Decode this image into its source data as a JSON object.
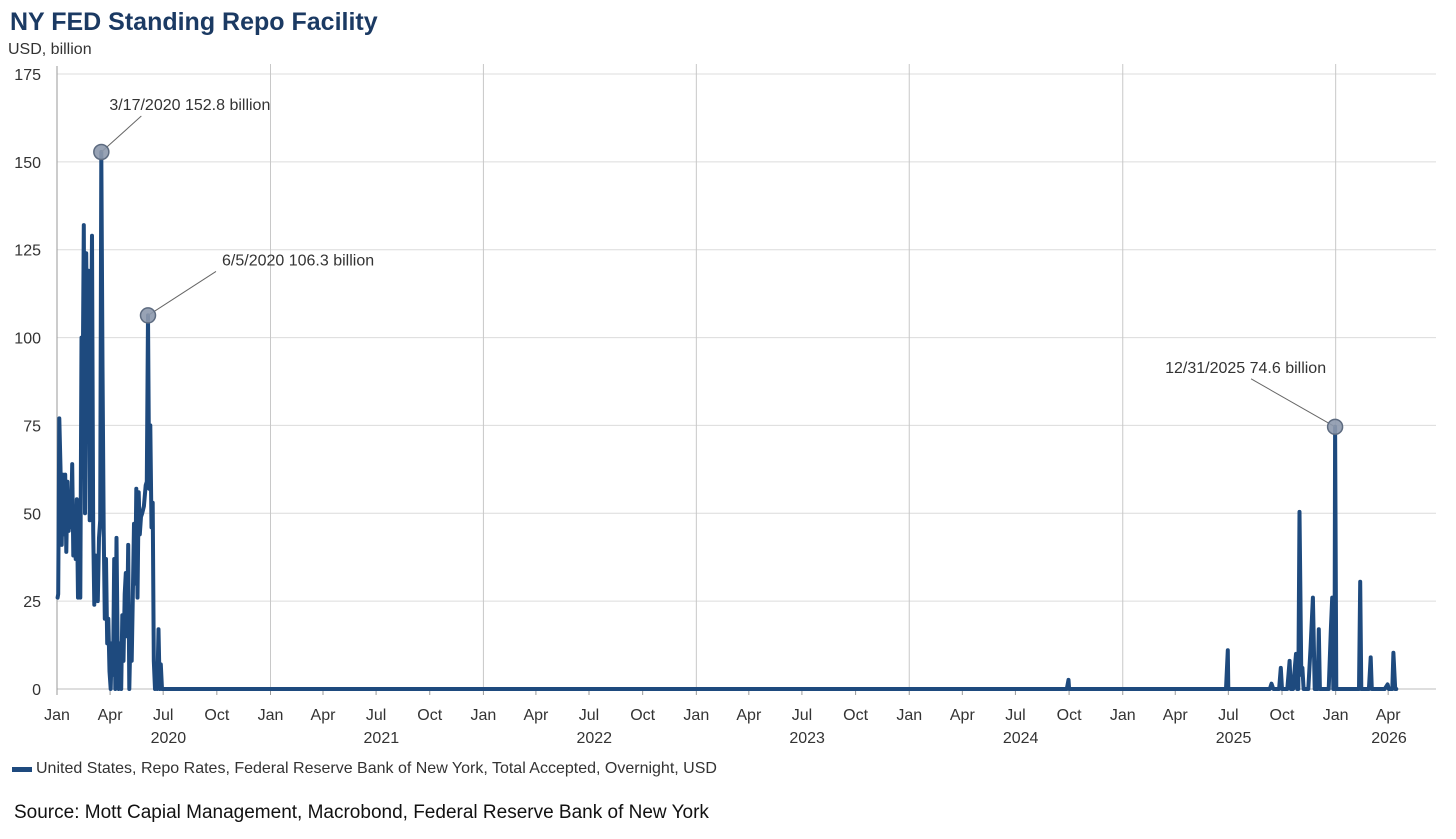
{
  "title": "NY FED Standing Repo Facility",
  "unit": "USD, billion",
  "legend": {
    "label": "United States, Repo Rates, Federal Reserve Bank of New York, Total Accepted, Overnight, USD",
    "color": "#1e4a7e"
  },
  "source": "Source: Mott Capial Management, Macrobond, Federal Reserve Bank of New York",
  "chart_data": {
    "type": "line",
    "title": "NY FED Standing Repo Facility",
    "ylabel": "USD, billion",
    "ylim": [
      0,
      175
    ],
    "yticks": [
      0,
      25,
      50,
      75,
      100,
      125,
      150,
      175
    ],
    "xlim": [
      "2020-01-01",
      "2026-04-30"
    ],
    "grid": true,
    "legend_position": "bottom-left",
    "month_ticks": [
      "Jan",
      "Apr",
      "Jul",
      "Oct",
      "Jan",
      "Apr",
      "Jul",
      "Oct",
      "Jan",
      "Apr",
      "Jul",
      "Oct",
      "Jan",
      "Apr",
      "Jul",
      "Oct",
      "Jan",
      "Apr",
      "Jul",
      "Oct",
      "Jan",
      "Apr",
      "Jul",
      "Oct",
      "Jan",
      "Apr"
    ],
    "year_ticks": [
      "2020",
      "2021",
      "2022",
      "2023",
      "2024",
      "2025",
      "2026"
    ],
    "series": [
      {
        "name": "United States, Repo Rates, Federal Reserve Bank of New York, Total Accepted, Overnight, USD",
        "color": "#1e4a7e",
        "points": [
          [
            "2020-01-02",
            26
          ],
          [
            "2020-01-03",
            27
          ],
          [
            "2020-01-05",
            77
          ],
          [
            "2020-01-07",
            63
          ],
          [
            "2020-01-09",
            41
          ],
          [
            "2020-01-11",
            61
          ],
          [
            "2020-01-13",
            44
          ],
          [
            "2020-01-15",
            61
          ],
          [
            "2020-01-17",
            39
          ],
          [
            "2020-01-19",
            59
          ],
          [
            "2020-01-21",
            45
          ],
          [
            "2020-01-23",
            56
          ],
          [
            "2020-01-25",
            46
          ],
          [
            "2020-01-27",
            64
          ],
          [
            "2020-01-29",
            38
          ],
          [
            "2020-01-31",
            46
          ],
          [
            "2020-02-02",
            37
          ],
          [
            "2020-02-04",
            54
          ],
          [
            "2020-02-06",
            26
          ],
          [
            "2020-02-08",
            46
          ],
          [
            "2020-02-10",
            26
          ],
          [
            "2020-02-12",
            100
          ],
          [
            "2020-02-14",
            87
          ],
          [
            "2020-02-16",
            132
          ],
          [
            "2020-02-18",
            50
          ],
          [
            "2020-02-20",
            124
          ],
          [
            "2020-02-22",
            91
          ],
          [
            "2020-02-24",
            119
          ],
          [
            "2020-02-26",
            48
          ],
          [
            "2020-03-01",
            129
          ],
          [
            "2020-03-03",
            45
          ],
          [
            "2020-03-05",
            24
          ],
          [
            "2020-03-07",
            38
          ],
          [
            "2020-03-09",
            35
          ],
          [
            "2020-03-11",
            25
          ],
          [
            "2020-03-13",
            43
          ],
          [
            "2020-03-15",
            48
          ],
          [
            "2020-03-17",
            152.8
          ],
          [
            "2020-03-19",
            92
          ],
          [
            "2020-03-21",
            45
          ],
          [
            "2020-03-23",
            20
          ],
          [
            "2020-03-25",
            37
          ],
          [
            "2020-03-27",
            13
          ],
          [
            "2020-03-29",
            20
          ],
          [
            "2020-03-31",
            5
          ],
          [
            "2020-04-02",
            0
          ],
          [
            "2020-04-04",
            13
          ],
          [
            "2020-04-06",
            4
          ],
          [
            "2020-04-08",
            37
          ],
          [
            "2020-04-10",
            0
          ],
          [
            "2020-04-12",
            43
          ],
          [
            "2020-04-14",
            10
          ],
          [
            "2020-04-16",
            0
          ],
          [
            "2020-04-18",
            13
          ],
          [
            "2020-04-20",
            0
          ],
          [
            "2020-04-22",
            21
          ],
          [
            "2020-04-24",
            8
          ],
          [
            "2020-04-26",
            27
          ],
          [
            "2020-04-28",
            33
          ],
          [
            "2020-04-30",
            15
          ],
          [
            "2020-05-02",
            41
          ],
          [
            "2020-05-04",
            0
          ],
          [
            "2020-05-06",
            16
          ],
          [
            "2020-05-08",
            8
          ],
          [
            "2020-05-10",
            26
          ],
          [
            "2020-05-12",
            47
          ],
          [
            "2020-05-14",
            30
          ],
          [
            "2020-05-16",
            57
          ],
          [
            "2020-05-18",
            26
          ],
          [
            "2020-05-20",
            56
          ],
          [
            "2020-05-22",
            44
          ],
          [
            "2020-05-24",
            49
          ],
          [
            "2020-05-26",
            50
          ],
          [
            "2020-05-29",
            52
          ],
          [
            "2020-06-01",
            58
          ],
          [
            "2020-06-03",
            59
          ],
          [
            "2020-06-05",
            106.3
          ],
          [
            "2020-06-07",
            57
          ],
          [
            "2020-06-09",
            75
          ],
          [
            "2020-06-11",
            46
          ],
          [
            "2020-06-13",
            53
          ],
          [
            "2020-06-15",
            8
          ],
          [
            "2020-06-17",
            0
          ],
          [
            "2020-06-19",
            1
          ],
          [
            "2020-06-21",
            0
          ],
          [
            "2020-06-23",
            17
          ],
          [
            "2020-06-25",
            0
          ],
          [
            "2020-06-27",
            7
          ],
          [
            "2020-06-29",
            0
          ],
          [
            "2020-07-05",
            0
          ],
          [
            "2024-09-27",
            0
          ],
          [
            "2024-09-30",
            2.6
          ],
          [
            "2024-10-01",
            0
          ],
          [
            "2025-06-27",
            0
          ],
          [
            "2025-06-30",
            11
          ],
          [
            "2025-07-01",
            0
          ],
          [
            "2025-09-10",
            0
          ],
          [
            "2025-09-13",
            1.5
          ],
          [
            "2025-09-16",
            0
          ],
          [
            "2025-09-26",
            0
          ],
          [
            "2025-09-29",
            6
          ],
          [
            "2025-10-01",
            0
          ],
          [
            "2025-10-10",
            0
          ],
          [
            "2025-10-14",
            8
          ],
          [
            "2025-10-16",
            0
          ],
          [
            "2025-10-20",
            0
          ],
          [
            "2025-10-23",
            6
          ],
          [
            "2025-10-25",
            10
          ],
          [
            "2025-10-27",
            0
          ],
          [
            "2025-10-29",
            0
          ],
          [
            "2025-10-31",
            50.4
          ],
          [
            "2025-11-03",
            4
          ],
          [
            "2025-11-05",
            6
          ],
          [
            "2025-11-07",
            0
          ],
          [
            "2025-11-15",
            0
          ],
          [
            "2025-11-19",
            12
          ],
          [
            "2025-11-23",
            26
          ],
          [
            "2025-11-26",
            0
          ],
          [
            "2025-12-01",
            0
          ],
          [
            "2025-12-03",
            17
          ],
          [
            "2025-12-05",
            0
          ],
          [
            "2025-12-20",
            0
          ],
          [
            "2025-12-24",
            18
          ],
          [
            "2025-12-26",
            26
          ],
          [
            "2025-12-28",
            0
          ],
          [
            "2025-12-30",
            0
          ],
          [
            "2025-12-31",
            74.6
          ],
          [
            "2026-01-02",
            0
          ],
          [
            "2026-02-10",
            0
          ],
          [
            "2026-02-12",
            30.5
          ],
          [
            "2026-02-14",
            0
          ],
          [
            "2026-02-27",
            0
          ],
          [
            "2026-03-02",
            9
          ],
          [
            "2026-03-04",
            0
          ],
          [
            "2026-03-26",
            0
          ],
          [
            "2026-03-31",
            1.3
          ],
          [
            "2026-04-02",
            0
          ],
          [
            "2026-04-08",
            0
          ],
          [
            "2026-04-10",
            10.3
          ],
          [
            "2026-04-13",
            0
          ],
          [
            "2026-04-15",
            0
          ]
        ]
      }
    ],
    "annotations": [
      {
        "date": "2020-03-17",
        "value": 152.8,
        "label": "3/17/2020 152.8 billion"
      },
      {
        "date": "2020-06-05",
        "value": 106.3,
        "label": "6/5/2020 106.3 billion"
      },
      {
        "date": "2025-12-31",
        "value": 74.6,
        "label": "12/31/2025 74.6 billion"
      }
    ]
  }
}
